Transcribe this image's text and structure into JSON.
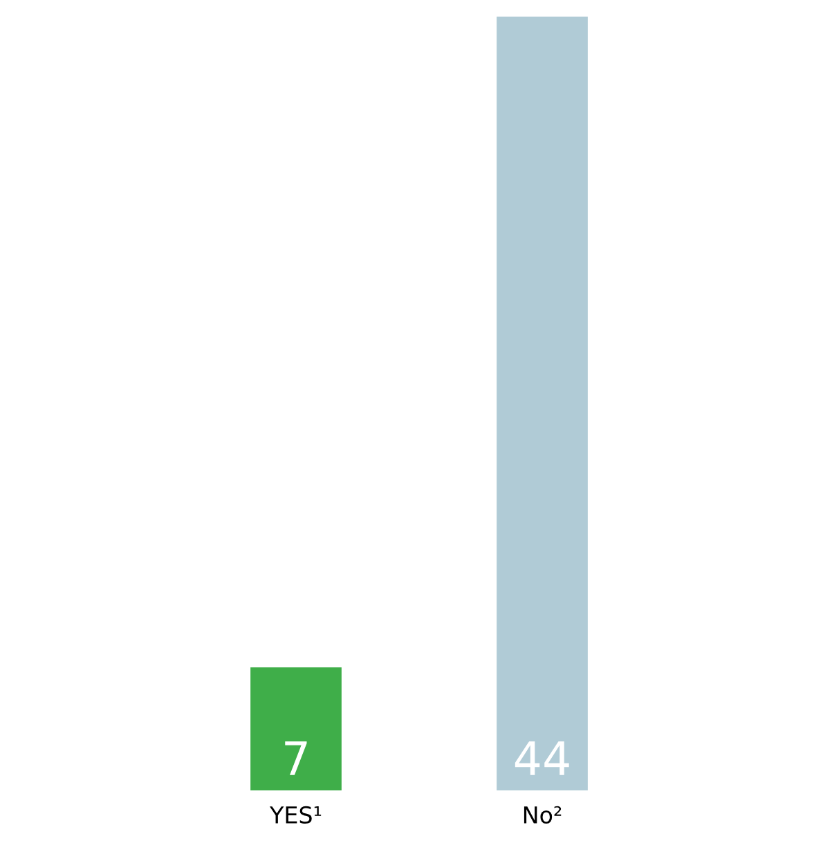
{
  "chart_data": {
    "type": "bar",
    "categories": [
      "YES¹",
      "No²"
    ],
    "values": [
      7,
      44
    ],
    "colors": [
      "#3fae49",
      "#b0cbd6"
    ],
    "data_labels": true
  }
}
